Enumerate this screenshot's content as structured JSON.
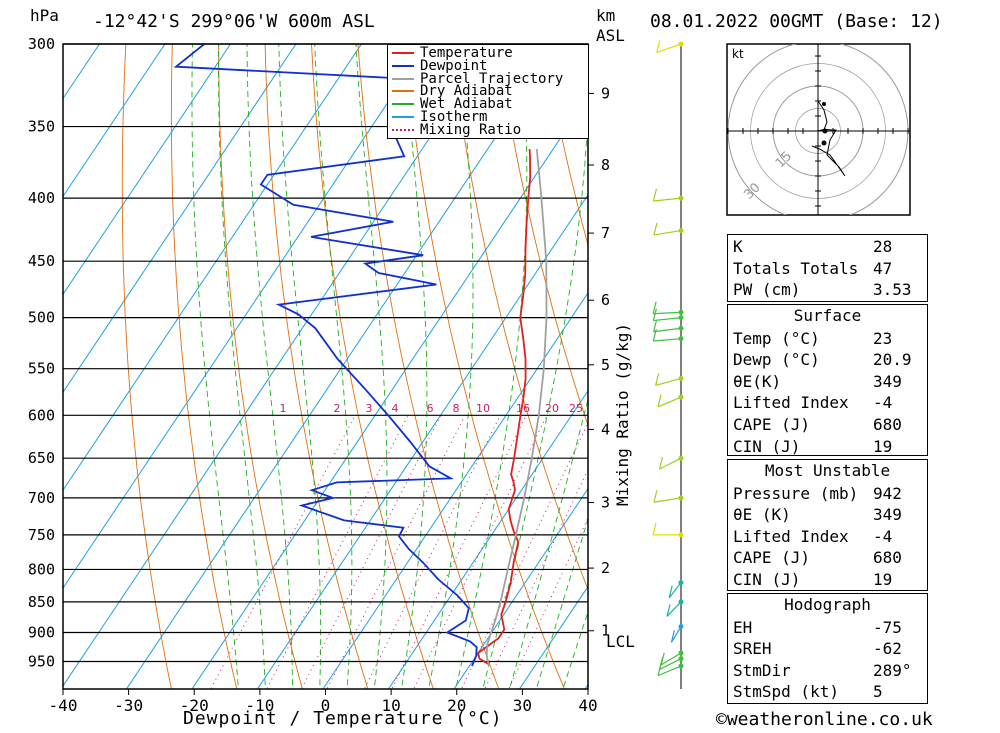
{
  "header": {
    "pressure_unit": "hPa",
    "location": "-12°42'S  299°06'W  600m  ASL",
    "km_label": "km",
    "asl_label": "ASL",
    "date": "08.01.2022  00GMT  (Base: 12)"
  },
  "chart_data": {
    "type": "line",
    "subtype": "skew-T log-P diagram",
    "xlabel": "Dewpoint / Temperature (°C)",
    "ylabel": "hPa",
    "secondary_ylabel": "Mixing Ratio (g/kg)",
    "xlim": [
      -40,
      40
    ],
    "ylim": [
      1000,
      300
    ],
    "x_ticks": [
      -40,
      -30,
      -20,
      -10,
      0,
      10,
      20,
      30,
      40
    ],
    "pressure_levels": [
      300,
      350,
      400,
      450,
      500,
      550,
      600,
      650,
      700,
      750,
      800,
      850,
      900,
      950
    ],
    "height_km_ticks": [
      {
        "label": "9",
        "p": 329
      },
      {
        "label": "8",
        "p": 376
      },
      {
        "label": "7",
        "p": 427
      },
      {
        "label": "6",
        "p": 484
      },
      {
        "label": "5",
        "p": 546
      },
      {
        "label": "4",
        "p": 616
      },
      {
        "label": "3",
        "p": 706
      },
      {
        "label": "2",
        "p": 798
      },
      {
        "label": "1",
        "p": 897
      }
    ],
    "lcl_label": "LCL",
    "lcl_pressure": 910,
    "mixing_ratio_labels": [
      "1",
      "2",
      "3",
      "4",
      "6",
      "8",
      "10",
      "16",
      "20",
      "25"
    ],
    "mixing_ratio_values": [
      1,
      2,
      3,
      4,
      6,
      8,
      10,
      16,
      20,
      25
    ],
    "legend": [
      {
        "name": "Temperature",
        "color": "#e02020",
        "style": "solid"
      },
      {
        "name": "Dewpoint",
        "color": "#1030d0",
        "style": "solid"
      },
      {
        "name": "Parcel Trajectory",
        "color": "#a0a0a0",
        "style": "solid"
      },
      {
        "name": "Dry Adiabat",
        "color": "#e07010",
        "style": "solid"
      },
      {
        "name": "Wet Adiabat",
        "color": "#20b020",
        "style": "solid"
      },
      {
        "name": "Isotherm",
        "color": "#20a0e0",
        "style": "solid"
      },
      {
        "name": "Mixing Ratio",
        "color": "#c02070",
        "style": "dotted"
      }
    ],
    "series": [
      {
        "name": "Temperature",
        "points": [
          {
            "p": 955,
            "t": 22.8
          },
          {
            "p": 945,
            "t": 20.8
          },
          {
            "p": 935,
            "t": 20.0
          },
          {
            "p": 910,
            "t": 21.6
          },
          {
            "p": 895,
            "t": 21.6
          },
          {
            "p": 870,
            "t": 19.6
          },
          {
            "p": 850,
            "t": 19.0
          },
          {
            "p": 820,
            "t": 17.8
          },
          {
            "p": 790,
            "t": 16.2
          },
          {
            "p": 760,
            "t": 14.8
          },
          {
            "p": 745,
            "t": 13.0
          },
          {
            "p": 730,
            "t": 11.4
          },
          {
            "p": 715,
            "t": 10.0
          },
          {
            "p": 700,
            "t": 9.4
          },
          {
            "p": 690,
            "t": 9.0
          },
          {
            "p": 680,
            "t": 8.0
          },
          {
            "p": 670,
            "t": 6.8
          },
          {
            "p": 650,
            "t": 5.6
          },
          {
            "p": 620,
            "t": 3.6
          },
          {
            "p": 600,
            "t": 2.2
          },
          {
            "p": 580,
            "t": 0.8
          },
          {
            "p": 560,
            "t": -0.8
          },
          {
            "p": 540,
            "t": -2.8
          },
          {
            "p": 520,
            "t": -5.2
          },
          {
            "p": 500,
            "t": -7.8
          },
          {
            "p": 480,
            "t": -9.6
          },
          {
            "p": 460,
            "t": -11.6
          },
          {
            "p": 440,
            "t": -14.0
          },
          {
            "p": 420,
            "t": -16.4
          },
          {
            "p": 400,
            "t": -18.8
          },
          {
            "p": 385,
            "t": -20.6
          },
          {
            "p": 370,
            "t": -22.8
          },
          {
            "p": 365,
            "t": -23.6
          }
        ],
        "color": "#e02020"
      },
      {
        "name": "Temperature upper",
        "points": [
          {
            "p": 330,
            "t": -30.0
          },
          {
            "p": 300,
            "t": -35.0
          }
        ],
        "color": "#e02020"
      },
      {
        "name": "Dewpoint",
        "points": [
          {
            "p": 958,
            "t": 20.4
          },
          {
            "p": 940,
            "t": 20.0
          },
          {
            "p": 925,
            "t": 19.2
          },
          {
            "p": 915,
            "t": 17.6
          },
          {
            "p": 900,
            "t": 13.2
          },
          {
            "p": 880,
            "t": 14.8
          },
          {
            "p": 860,
            "t": 14.0
          },
          {
            "p": 840,
            "t": 11.0
          },
          {
            "p": 815,
            "t": 6.4
          },
          {
            "p": 790,
            "t": 2.4
          },
          {
            "p": 770,
            "t": -1.2
          },
          {
            "p": 752,
            "t": -4.0
          },
          {
            "p": 740,
            "t": -4.2
          },
          {
            "p": 730,
            "t": -14.0
          },
          {
            "p": 710,
            "t": -22.0
          },
          {
            "p": 700,
            "t": -18.0
          },
          {
            "p": 690,
            "t": -22.0
          },
          {
            "p": 680,
            "t": -19.0
          },
          {
            "p": 675,
            "t": -2.0
          },
          {
            "p": 660,
            "t": -6.5
          },
          {
            "p": 630,
            "t": -12.0
          },
          {
            "p": 600,
            "t": -18.0
          },
          {
            "p": 570,
            "t": -24.5
          },
          {
            "p": 540,
            "t": -31.5
          },
          {
            "p": 510,
            "t": -38.0
          },
          {
            "p": 497,
            "t": -42.0
          },
          {
            "p": 488,
            "t": -46.0
          },
          {
            "p": 470,
            "t": -24.0
          },
          {
            "p": 460,
            "t": -34.0
          },
          {
            "p": 452,
            "t": -37.0
          },
          {
            "p": 445,
            "t": -29.0
          },
          {
            "p": 430,
            "t": -48.0
          },
          {
            "p": 418,
            "t": -37.0
          },
          {
            "p": 405,
            "t": -54.0
          },
          {
            "p": 390,
            "t": -61.0
          },
          {
            "p": 383,
            "t": -61.0
          },
          {
            "p": 370,
            "t": -42.0
          },
          {
            "p": 358,
            "t": -45.0
          },
          {
            "p": 345,
            "t": -45.0
          },
          {
            "p": 320,
            "t": -50.0
          },
          {
            "p": 313,
            "t": -86.0
          },
          {
            "p": 300,
            "t": -84.0
          }
        ],
        "color": "#1030d0"
      },
      {
        "name": "Parcel Trajectory",
        "points": [
          {
            "p": 958,
            "t": 23.0
          },
          {
            "p": 940,
            "t": 21.6
          },
          {
            "p": 920,
            "t": 20.5
          },
          {
            "p": 880,
            "t": 19.3
          },
          {
            "p": 850,
            "t": 18.2
          },
          {
            "p": 800,
            "t": 16.0
          },
          {
            "p": 750,
            "t": 13.7
          },
          {
            "p": 700,
            "t": 11.2
          },
          {
            "p": 650,
            "t": 8.3
          },
          {
            "p": 600,
            "t": 5.0
          },
          {
            "p": 550,
            "t": 1.0
          },
          {
            "p": 500,
            "t": -3.8
          },
          {
            "p": 450,
            "t": -9.6
          },
          {
            "p": 400,
            "t": -16.8
          },
          {
            "p": 365,
            "t": -22.5
          }
        ],
        "color": "#a0a0a0"
      }
    ]
  },
  "hodograph": {
    "unit": "kt",
    "ring_labels": [
      "15",
      "30",
      "45"
    ],
    "ring_values": [
      15,
      30,
      45
    ],
    "hodo_line": [
      [
        0,
        0
      ],
      [
        2,
        0.5
      ],
      [
        6,
        0.3
      ],
      [
        4,
        -3
      ],
      [
        3,
        -8
      ],
      [
        7,
        -12
      ],
      [
        9,
        -15
      ],
      [
        4,
        -8
      ],
      [
        0.5,
        -6
      ],
      [
        -2,
        -5
      ]
    ],
    "arrow_line": [
      [
        0,
        0
      ],
      [
        2,
        0.5
      ],
      [
        3,
        3
      ],
      [
        2,
        7
      ],
      [
        0,
        10
      ]
    ],
    "storm_motion": [
      2,
      -4
    ]
  },
  "wind_barbs": [
    {
      "p": 300,
      "color": "#e0e000"
    },
    {
      "p": 400,
      "color": "#a0d020"
    },
    {
      "p": 425,
      "color": "#a0d020"
    },
    {
      "p": 495,
      "color": "#40c040"
    },
    {
      "p": 500,
      "color": "#40c040"
    },
    {
      "p": 510,
      "color": "#40c040"
    },
    {
      "p": 520,
      "color": "#40c040"
    },
    {
      "p": 560,
      "color": "#a0d020"
    },
    {
      "p": 580,
      "color": "#a0d020"
    },
    {
      "p": 650,
      "color": "#a0d020"
    },
    {
      "p": 700,
      "color": "#a0d020"
    },
    {
      "p": 750,
      "color": "#e0e000"
    },
    {
      "p": 820,
      "color": "#20b0a0"
    },
    {
      "p": 850,
      "color": "#20b0a0"
    },
    {
      "p": 890,
      "color": "#20a0e0"
    },
    {
      "p": 935,
      "color": "#40c040"
    },
    {
      "p": 945,
      "color": "#40c040"
    },
    {
      "p": 958,
      "color": "#40c040"
    }
  ],
  "indices": {
    "top": [
      {
        "label": "K",
        "value": "28"
      },
      {
        "label": "Totals Totals",
        "value": "47"
      },
      {
        "label": "PW (cm)",
        "value": "3.53"
      }
    ],
    "surface_title": "Surface",
    "surface": [
      {
        "label": "Temp (°C)",
        "value": "23"
      },
      {
        "label": "Dewp (°C)",
        "value": "20.9"
      },
      {
        "label": "θE(K)",
        "value": "349"
      },
      {
        "label": "Lifted Index",
        "value": "-4"
      },
      {
        "label": "CAPE (J)",
        "value": "680"
      },
      {
        "label": "CIN (J)",
        "value": "19"
      }
    ],
    "mu_title": "Most Unstable",
    "mu": [
      {
        "label": "Pressure (mb)",
        "value": "942"
      },
      {
        "label": "θE (K)",
        "value": "349"
      },
      {
        "label": "Lifted Index",
        "value": "-4"
      },
      {
        "label": "CAPE (J)",
        "value": "680"
      },
      {
        "label": "CIN (J)",
        "value": "19"
      }
    ],
    "hodo_title": "Hodograph",
    "hodo": [
      {
        "label": "EH",
        "value": "-75"
      },
      {
        "label": "SREH",
        "value": "-62"
      },
      {
        "label": "StmDir",
        "value": "289°"
      },
      {
        "label": "StmSpd (kt)",
        "value": "5"
      }
    ]
  },
  "footer": {
    "copyright": "©weatheronline.co.uk"
  }
}
